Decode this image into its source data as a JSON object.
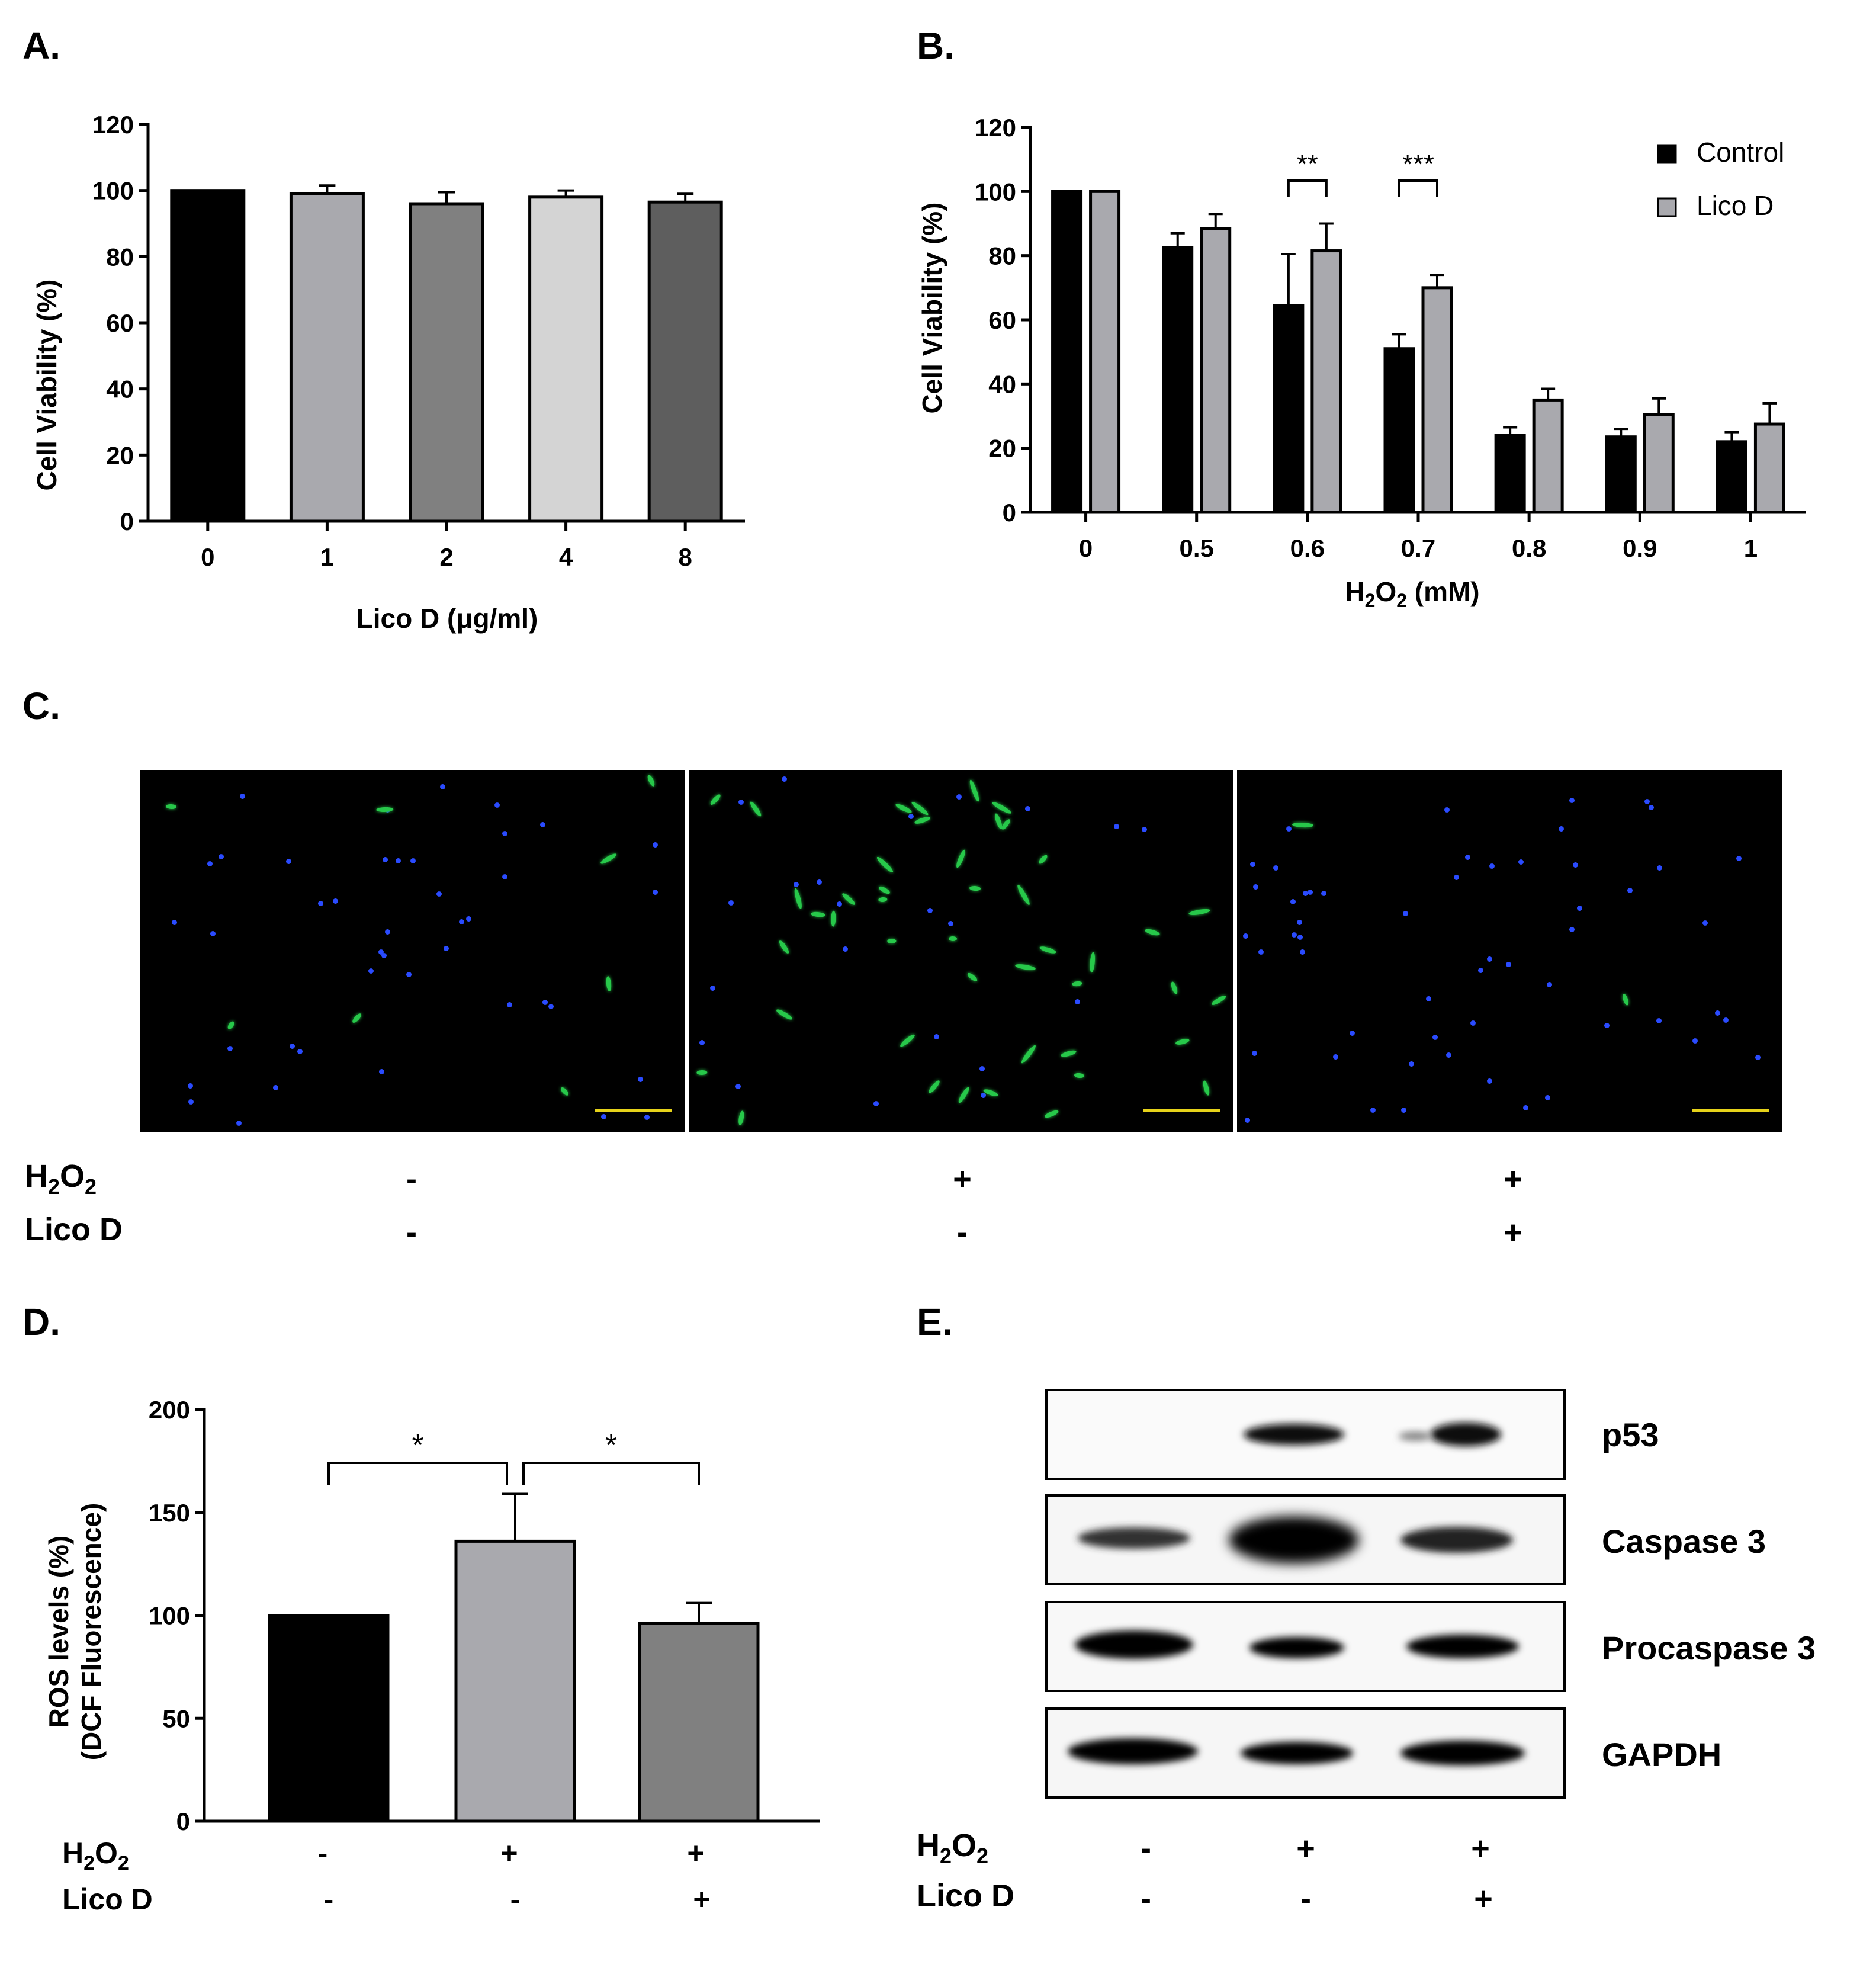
{
  "panels": {
    "a": "A.",
    "b": "B.",
    "c": "C.",
    "d": "D.",
    "e": "E."
  },
  "colors": {
    "black": "#000000",
    "gray_light": "#a9a9ae",
    "gray_mid": "#808080",
    "gray_pale": "#d4d4d4",
    "gray_dark": "#5e5e5e",
    "dcf_green": "#27c84a",
    "dapi_blue": "#2a4bff",
    "scale_bar": "#e6d21a"
  },
  "chart_data": [
    {
      "id": "A",
      "type": "bar",
      "categories": [
        "0",
        "1",
        "2",
        "4",
        "8"
      ],
      "values": [
        100,
        99,
        96,
        98,
        96.5
      ],
      "errors": [
        0,
        2.5,
        3.5,
        2,
        2.5
      ],
      "bar_colors": [
        "#000000",
        "#a9a9ae",
        "#808080",
        "#d4d4d4",
        "#5e5e5e"
      ],
      "ylabel": "Cell Viability (%)",
      "xlabel": "Lico D (μg/ml)",
      "ylim": [
        0,
        120
      ],
      "yticks": [
        "0",
        "20",
        "40",
        "60",
        "80",
        "100",
        "120"
      ],
      "grid": false
    },
    {
      "id": "B",
      "type": "bar",
      "categories": [
        "0",
        "0.5",
        "0.6",
        "0.7",
        "0.8",
        "0.9",
        "1"
      ],
      "series": [
        {
          "name": "Control",
          "values": [
            100,
            82.5,
            64.5,
            51,
            24,
            23.5,
            22
          ],
          "errors": [
            0,
            4.5,
            16,
            4.5,
            2.5,
            2.5,
            3
          ],
          "color": "#000000"
        },
        {
          "name": "Lico D",
          "values": [
            100,
            88.5,
            81.5,
            70,
            35,
            30.5,
            27.5
          ],
          "errors": [
            0,
            4.5,
            8.5,
            4,
            3.5,
            5,
            6.5
          ],
          "color": "#a9a9ae"
        }
      ],
      "ylabel": "Cell Viability (%)",
      "xlabel_main": "H",
      "xlabel_sub1": "2",
      "xlabel_mid": "O",
      "xlabel_sub2": "2",
      "xlabel_tail": " (mM)",
      "ylim": [
        0,
        120
      ],
      "yticks": [
        "0",
        "20",
        "40",
        "60",
        "80",
        "100",
        "120"
      ],
      "significance": [
        {
          "category": "0.6",
          "label": "**"
        },
        {
          "category": "0.7",
          "label": "***"
        }
      ],
      "legend": "top-right",
      "grid": false
    },
    {
      "id": "D",
      "type": "bar",
      "categories": [
        "H2O2- LicoD-",
        "H2O2+ LicoD-",
        "H2O2+ LicoD+"
      ],
      "values": [
        100,
        136,
        96
      ],
      "errors": [
        0,
        23,
        10
      ],
      "bar_colors": [
        "#000000",
        "#a9a9ae",
        "#808080"
      ],
      "ylabel_line1": "ROS levels (%)",
      "ylabel_line2": "(DCF Fluorescence)",
      "ylim": [
        0,
        200
      ],
      "yticks": [
        "0",
        "50",
        "100",
        "150",
        "200"
      ],
      "significance": [
        {
          "from": 0,
          "to": 1,
          "label": "*"
        },
        {
          "from": 1,
          "to": 2,
          "label": "*"
        }
      ],
      "grid": false
    }
  ],
  "conditions": {
    "h2o2_main": "H",
    "h2o2_sub1": "2",
    "h2o2_mid": "O",
    "h2o2_sub2": "2",
    "lico_label": "Lico D",
    "h2o2_marks": [
      "-",
      "+",
      "+"
    ],
    "lico_marks": [
      "-",
      "-",
      "+"
    ]
  },
  "western_blot": {
    "labels": [
      "p53",
      "Caspase 3",
      "Procaspase 3",
      "GAPDH"
    ]
  }
}
